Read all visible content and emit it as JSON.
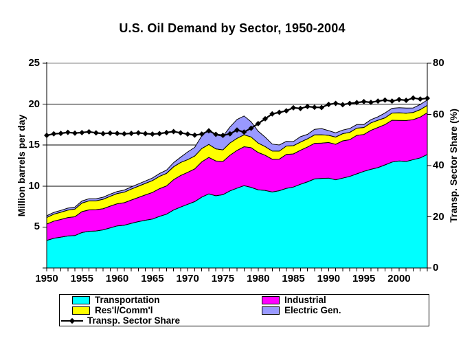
{
  "colors": {
    "background": "#FFFFFF",
    "text": "#000000",
    "axis": "#000000",
    "gridline": "#000000",
    "plot_top_border": "#808080"
  },
  "axes": {
    "left_tick_marks": [
      0,
      5,
      10,
      15,
      20,
      25
    ],
    "right_tick_marks": [
      0,
      20,
      40,
      60,
      80
    ]
  },
  "chart_data": {
    "type": "stacked-area+line",
    "title": "U.S. Oil Demand by Sector, 1950-2004",
    "xlabel": "",
    "ylabel_left": "Million barrels per day",
    "ylabel_right": "Transp. Sector Share (%)",
    "xlim": [
      1950,
      2004
    ],
    "ylim_left": [
      0,
      25
    ],
    "ylim_right": [
      0,
      80
    ],
    "yticks_left": [
      5,
      10,
      15,
      20,
      25
    ],
    "yticks_right": [
      0,
      20,
      40,
      60,
      80
    ],
    "gridlines_left": [
      5,
      10,
      15,
      20
    ],
    "x_ticks_labeled": [
      1950,
      1955,
      1960,
      1965,
      1970,
      1975,
      1980,
      1985,
      1990,
      1995,
      2000
    ],
    "x_minor_tick_every": 1,
    "grid": "horizontal",
    "legend_position": "bottom",
    "x": [
      1950,
      1951,
      1952,
      1953,
      1954,
      1955,
      1956,
      1957,
      1958,
      1959,
      1960,
      1961,
      1962,
      1963,
      1964,
      1965,
      1966,
      1967,
      1968,
      1969,
      1970,
      1971,
      1972,
      1973,
      1974,
      1975,
      1976,
      1977,
      1978,
      1979,
      1980,
      1981,
      1982,
      1983,
      1984,
      1985,
      1986,
      1987,
      1988,
      1989,
      1990,
      1991,
      1992,
      1993,
      1994,
      1995,
      1996,
      1997,
      1998,
      1999,
      2000,
      2001,
      2002,
      2003,
      2004
    ],
    "series": [
      {
        "name": "Transportation",
        "type": "area",
        "stacked": true,
        "axis": "left",
        "color": "#00FFFF",
        "values": [
          3.36,
          3.62,
          3.77,
          3.91,
          3.96,
          4.33,
          4.48,
          4.52,
          4.66,
          4.9,
          5.14,
          5.23,
          5.45,
          5.66,
          5.83,
          5.97,
          6.3,
          6.57,
          7.08,
          7.44,
          7.78,
          8.1,
          8.66,
          9.05,
          8.82,
          8.95,
          9.41,
          9.75,
          10.06,
          9.85,
          9.55,
          9.47,
          9.28,
          9.44,
          9.72,
          9.88,
          10.22,
          10.52,
          10.87,
          10.94,
          10.97,
          10.77,
          10.97,
          11.18,
          11.49,
          11.8,
          12.05,
          12.26,
          12.58,
          12.94,
          13.06,
          13.0,
          13.23,
          13.44,
          13.86
        ]
      },
      {
        "name": "Industrial",
        "type": "area",
        "stacked": true,
        "axis": "left",
        "color": "#FF00FF",
        "values": [
          2.0,
          2.1,
          2.15,
          2.25,
          2.3,
          2.55,
          2.62,
          2.6,
          2.58,
          2.65,
          2.7,
          2.74,
          2.85,
          2.95,
          3.1,
          3.25,
          3.38,
          3.45,
          3.7,
          3.85,
          3.9,
          4.0,
          4.3,
          4.45,
          4.25,
          4.05,
          4.35,
          4.6,
          4.75,
          4.85,
          4.55,
          4.3,
          4.0,
          3.85,
          4.15,
          4.05,
          4.15,
          4.25,
          4.35,
          4.3,
          4.35,
          4.33,
          4.55,
          4.48,
          4.7,
          4.5,
          4.75,
          4.9,
          4.93,
          5.1,
          4.96,
          5.0,
          4.88,
          4.98,
          5.1
        ]
      },
      {
        "name": "Res'l/Comm'l",
        "type": "area",
        "stacked": true,
        "axis": "left",
        "color": "#FFFF00",
        "values": [
          0.8,
          0.85,
          0.88,
          0.9,
          0.93,
          1.05,
          1.1,
          1.08,
          1.15,
          1.2,
          1.25,
          1.28,
          1.33,
          1.37,
          1.4,
          1.45,
          1.5,
          1.53,
          1.58,
          1.6,
          1.55,
          1.57,
          1.62,
          1.58,
          1.48,
          1.42,
          1.5,
          1.48,
          1.45,
          1.3,
          1.15,
          1.05,
          1.0,
          0.98,
          1.02,
          1.0,
          1.0,
          1.0,
          1.03,
          1.03,
          0.88,
          0.88,
          0.88,
          0.9,
          0.88,
          0.86,
          0.92,
          0.88,
          0.82,
          0.88,
          0.93,
          0.9,
          0.88,
          0.92,
          0.9
        ]
      },
      {
        "name": "Electric Gen.",
        "type": "area",
        "stacked": true,
        "axis": "left",
        "color": "#9999FF",
        "values": [
          0.22,
          0.22,
          0.23,
          0.25,
          0.24,
          0.25,
          0.26,
          0.26,
          0.25,
          0.26,
          0.25,
          0.26,
          0.27,
          0.28,
          0.29,
          0.31,
          0.35,
          0.4,
          0.5,
          0.63,
          0.94,
          1.05,
          1.55,
          1.85,
          1.7,
          1.65,
          1.95,
          2.3,
          2.3,
          1.85,
          1.45,
          1.15,
          0.85,
          0.75,
          0.56,
          0.51,
          0.65,
          0.55,
          0.68,
          0.75,
          0.57,
          0.52,
          0.44,
          0.47,
          0.44,
          0.36,
          0.38,
          0.42,
          0.6,
          0.58,
          0.62,
          0.62,
          0.55,
          0.62,
          0.65
        ]
      },
      {
        "name": "Transp. Sector Share",
        "type": "line",
        "axis": "right",
        "color": "#000000",
        "marker": "diamond",
        "values": [
          51.8,
          52.4,
          52.6,
          53.0,
          52.7,
          52.9,
          53.2,
          52.8,
          52.5,
          52.7,
          52.6,
          52.4,
          52.6,
          52.8,
          52.5,
          52.3,
          52.5,
          52.9,
          53.3,
          52.8,
          52.3,
          51.9,
          52.3,
          53.6,
          52.2,
          51.8,
          52.4,
          53.9,
          53.1,
          54.6,
          56.4,
          58.3,
          60.2,
          60.8,
          61.4,
          62.6,
          62.3,
          63.1,
          62.8,
          62.7,
          63.9,
          64.3,
          63.8,
          64.3,
          64.6,
          65.0,
          64.7,
          65.2,
          65.6,
          65.2,
          65.8,
          65.5,
          66.4,
          66.0,
          66.3
        ]
      }
    ]
  }
}
